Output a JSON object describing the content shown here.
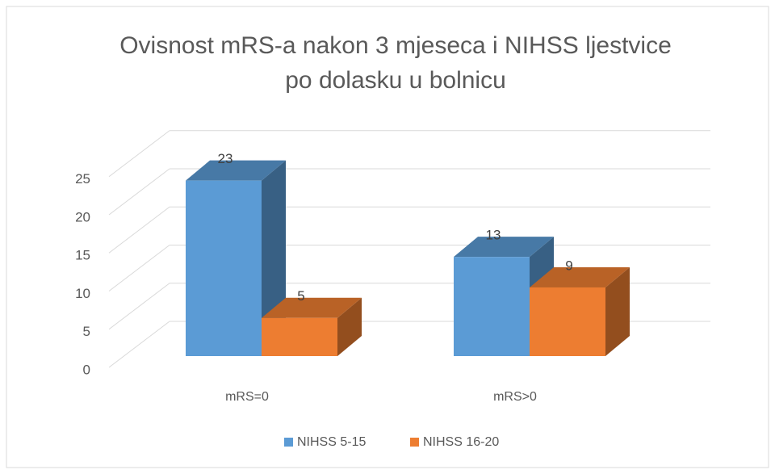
{
  "chart_data": {
    "type": "bar3d",
    "title": [
      "Ovisnost mRS-a nakon 3 mjeseca i NIHSS ljestvice",
      "po dolasku u bolnicu"
    ],
    "categories": [
      "mRS=0",
      "mRS>0"
    ],
    "series": [
      {
        "name": "NIHSS 5-15",
        "color": "#5b9bd5",
        "values": [
          23,
          13
        ]
      },
      {
        "name": "NIHSS 16-20",
        "color": "#ed7d31",
        "values": [
          5,
          9
        ]
      }
    ],
    "ylim": [
      0,
      25
    ],
    "yticks": [
      0,
      5,
      10,
      15,
      20,
      25
    ],
    "grid": true,
    "legend": "bottom"
  }
}
